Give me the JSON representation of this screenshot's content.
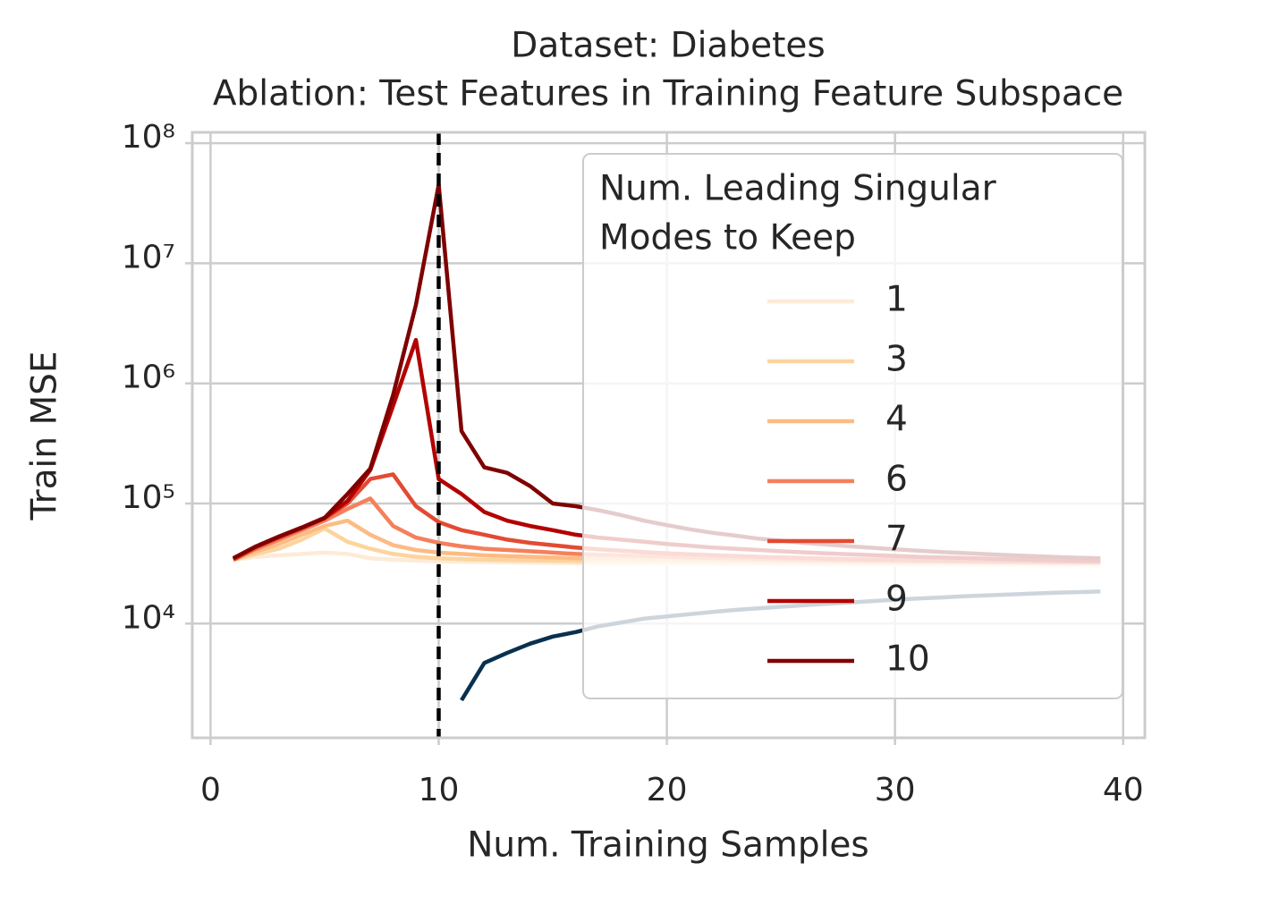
{
  "chart_data": {
    "type": "line",
    "title": [
      "Dataset: Diabetes",
      "Ablation: Test Features in Training Feature Subspace"
    ],
    "x_label": "Num. Training Samples",
    "y_label": "Train MSE",
    "y_scale": "log",
    "grid": true,
    "legend_position": "upper right",
    "legend_title": [
      "Num. Leading Singular",
      "Modes to Keep"
    ],
    "xlim": [
      -0.8,
      40.95
    ],
    "ylim": [
      1120,
      123000000
    ],
    "xticks": [
      0,
      10,
      20,
      30,
      40
    ],
    "yticks": [
      {
        "value": 10000,
        "label": "10⁴"
      },
      {
        "value": 100000,
        "label": "10⁵"
      },
      {
        "value": 1000000,
        "label": "10⁶"
      },
      {
        "value": 10000000,
        "label": "10⁷"
      },
      {
        "value": 100000000,
        "label": "10⁸"
      }
    ],
    "vline": 10,
    "x": [
      1,
      2,
      3,
      4,
      5,
      6,
      7,
      8,
      9,
      10,
      11,
      12,
      13,
      14,
      15,
      16,
      17,
      18,
      19,
      20,
      21,
      22,
      23,
      24,
      25,
      26,
      27,
      28,
      29,
      30,
      31,
      32,
      33,
      34,
      35,
      36,
      37,
      38,
      39
    ],
    "series": [
      {
        "name": "1",
        "color": "#fdebd8",
        "values": [
          34000,
          36000,
          37000,
          38000,
          39000,
          38000,
          35000,
          34000,
          33500,
          33000,
          32800,
          32600,
          32400,
          32200,
          32000,
          31900,
          31800,
          31700,
          31600,
          31500,
          31400,
          31300,
          31200,
          31100,
          31000,
          31000,
          30900,
          30900,
          30800,
          30800,
          30700,
          30700,
          30600,
          30600,
          30600,
          30500,
          30500,
          30500,
          30500
        ]
      },
      {
        "name": "3",
        "color": "#fdd49e",
        "values": [
          34000,
          38000,
          42000,
          50000,
          62000,
          48000,
          42000,
          38000,
          36000,
          35000,
          34500,
          34000,
          33800,
          33600,
          33400,
          33200,
          33000,
          32900,
          32800,
          32700,
          32600,
          32500,
          32400,
          32300,
          32200,
          32100,
          32000,
          32000,
          31900,
          31900,
          31800,
          31800,
          31700,
          31700,
          31600,
          31600,
          31500,
          31500,
          31500
        ]
      },
      {
        "name": "4",
        "color": "#fdbb84",
        "values": [
          34000,
          40000,
          46000,
          55000,
          65000,
          72000,
          55000,
          45000,
          41000,
          39000,
          38000,
          37000,
          36500,
          36000,
          35500,
          35000,
          34800,
          34600,
          34400,
          34200,
          34000,
          33800,
          33600,
          33400,
          33200,
          33000,
          32900,
          32800,
          32700,
          32600,
          32500,
          32400,
          32300,
          32200,
          32100,
          32000,
          32000,
          31900,
          31900
        ]
      },
      {
        "name": "6",
        "color": "#f4805c",
        "values": [
          34000,
          42000,
          50000,
          60000,
          72000,
          90000,
          110000,
          65000,
          52000,
          47000,
          44000,
          42000,
          41000,
          40000,
          39000,
          38000,
          37500,
          37000,
          36500,
          36000,
          35500,
          35200,
          34900,
          34600,
          34300,
          34000,
          33800,
          33600,
          33400,
          33200,
          33000,
          32900,
          32800,
          32700,
          32600,
          32500,
          32400,
          32300,
          32200
        ]
      },
      {
        "name": "7",
        "color": "#e34a33",
        "values": [
          34000,
          43000,
          52000,
          62000,
          75000,
          100000,
          160000,
          175000,
          95000,
          70000,
          60000,
          55000,
          50000,
          47000,
          45000,
          43000,
          41500,
          40500,
          39500,
          38500,
          37800,
          37200,
          36600,
          36000,
          35600,
          35200,
          34800,
          34500,
          34200,
          34000,
          33800,
          33600,
          33400,
          33200,
          33000,
          32900,
          32800,
          32700,
          32600
        ]
      },
      {
        "name": "9",
        "color": "#b30000",
        "values": [
          35000,
          44000,
          53000,
          63000,
          76000,
          105000,
          190000,
          650000,
          2300000,
          160000,
          120000,
          85000,
          72000,
          65000,
          60000,
          55000,
          52000,
          50000,
          48000,
          46000,
          44500,
          43000,
          42000,
          41000,
          40000,
          39200,
          38500,
          37800,
          37200,
          36600,
          36000,
          35600,
          35200,
          34800,
          34400,
          34000,
          33700,
          33400,
          33200
        ]
      },
      {
        "name": "10",
        "color": "#7f0000",
        "values": [
          35000,
          44000,
          53000,
          63000,
          76000,
          120000,
          195000,
          800000,
          4500000,
          45000000,
          400000,
          200000,
          180000,
          140000,
          100000,
          95000,
          88000,
          80000,
          72000,
          66000,
          61000,
          57000,
          54000,
          51000,
          49000,
          47000,
          45500,
          44000,
          42800,
          41600,
          40500,
          39500,
          38700,
          37900,
          37200,
          36500,
          35900,
          35400,
          35000
        ]
      },
      {
        "color": "#08304f",
        "values": [
          null,
          null,
          null,
          null,
          null,
          null,
          null,
          null,
          null,
          null,
          2300,
          4700,
          5700,
          6800,
          7800,
          8500,
          9500,
          10200,
          11000,
          11500,
          12000,
          12500,
          13000,
          13400,
          13800,
          14200,
          14600,
          15000,
          15400,
          15800,
          16200,
          16500,
          16900,
          17200,
          17500,
          17800,
          18100,
          18300,
          18500
        ]
      }
    ]
  }
}
